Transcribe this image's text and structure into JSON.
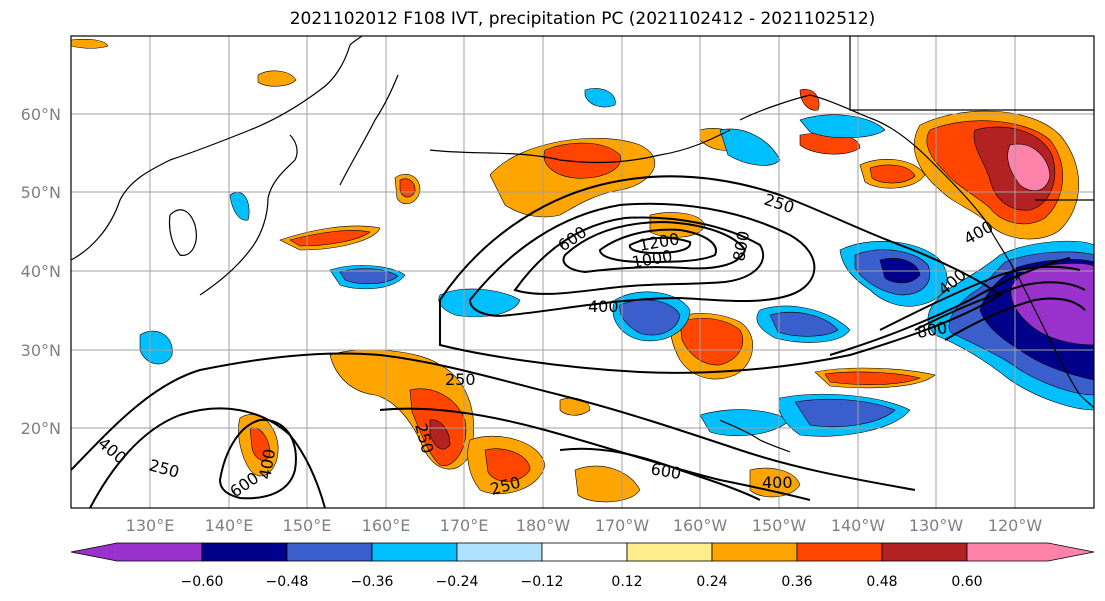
{
  "title": "2021102012 F108 IVT, precipitation PC (2021102412 - 2021102512)",
  "map": {
    "latitude_labels": [
      "60°N",
      "50°N",
      "40°N",
      "30°N",
      "20°N"
    ],
    "longitude_labels": [
      "130°E",
      "140°E",
      "150°E",
      "160°E",
      "170°E",
      "180°W",
      "170°W",
      "160°W",
      "150°W",
      "140°W",
      "130°W",
      "120°W"
    ],
    "ivt_contour_levels": [
      250,
      400,
      600,
      800,
      1000,
      1200
    ],
    "ivt_contour_labels": [
      "250",
      "400",
      "600",
      "800",
      "1000",
      "1200"
    ]
  },
  "colorbar": {
    "tick_labels": [
      "−0.60",
      "−0.48",
      "−0.36",
      "−0.24",
      "−0.12",
      "0.12",
      "0.24",
      "0.36",
      "0.48",
      "0.60"
    ],
    "colors": [
      "#9932cc",
      "#00008b",
      "#3a5fcd",
      "#00bfff",
      "#b0e2ff",
      "#ffffff",
      "#ffec8b",
      "#ffa500",
      "#ff4500",
      "#b22222",
      "#ff82ab"
    ]
  }
}
